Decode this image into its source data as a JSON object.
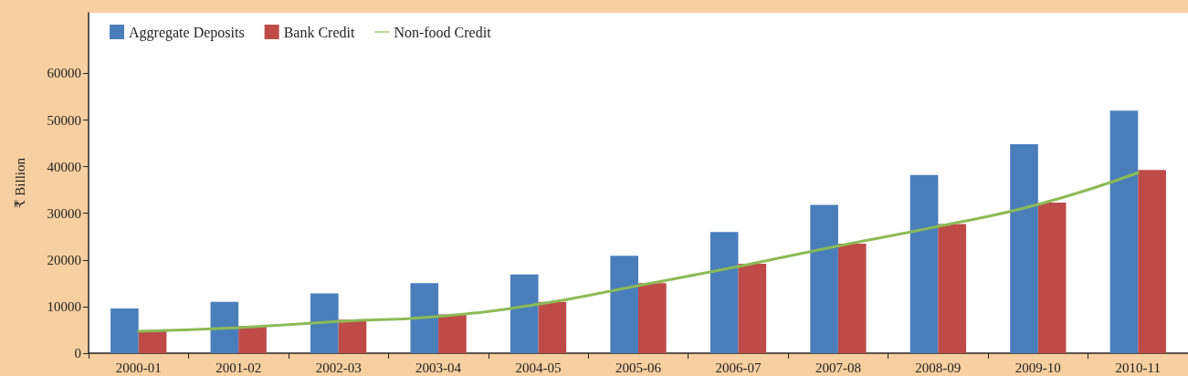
{
  "chart_data": {
    "type": "bar",
    "ylabel": "₹ Billion",
    "categories": [
      "2000-01",
      "2001-02",
      "2002-03",
      "2003-04",
      "2004-05",
      "2005-06",
      "2006-07",
      "2007-08",
      "2008-09",
      "2009-10",
      "2010-11"
    ],
    "series": [
      {
        "name": "Aggregate Deposits",
        "color": "#4a7ebb",
        "values": [
          9600,
          11000,
          12800,
          15000,
          16900,
          20900,
          26000,
          31800,
          38200,
          44800,
          52000
        ]
      },
      {
        "name": "Bank Credit",
        "color": "#be4b48",
        "values": [
          4700,
          5800,
          7200,
          8300,
          11000,
          15000,
          19200,
          23500,
          27700,
          32300,
          39300
        ]
      },
      {
        "name": "Non-food Credit",
        "type": "line",
        "color": "#8cbb55",
        "values": [
          4700,
          5500,
          6800,
          7900,
          10500,
          14500,
          18600,
          23000,
          27200,
          31900,
          38700
        ]
      }
    ],
    "ylim": [
      0,
      73000
    ],
    "yticks": [
      0,
      10000,
      20000,
      30000,
      40000,
      50000,
      60000
    ],
    "grid": false,
    "legend": "top left",
    "marker": "none"
  }
}
